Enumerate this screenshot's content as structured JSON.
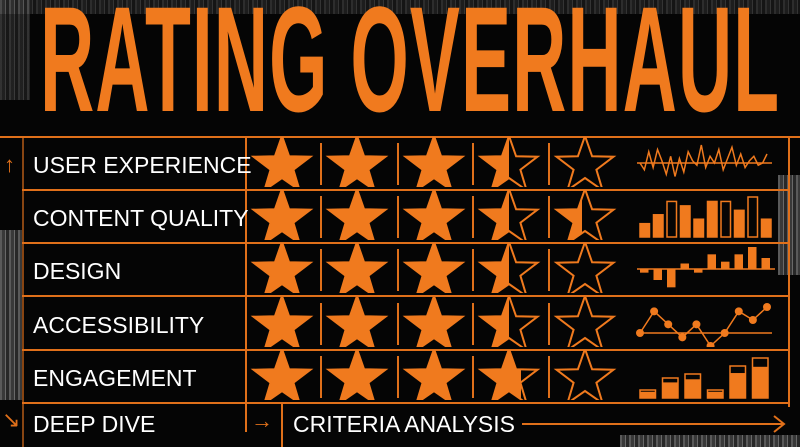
{
  "title": "RATING OVERHAUL",
  "colors": {
    "accent": "#f07a1e",
    "background": "#050505",
    "text": "#ffffff"
  },
  "rows": [
    {
      "label": "USER EXPERIENCE",
      "stars": [
        1,
        1,
        1,
        0.5,
        0
      ],
      "spark": {
        "type": "line",
        "values": [
          0,
          -3,
          5,
          -2,
          6,
          1,
          -5,
          3,
          -6,
          2,
          -4,
          5,
          1,
          -1,
          8,
          -2,
          3,
          0,
          6,
          -3,
          2,
          7,
          -1,
          4,
          -2,
          1,
          3,
          -1,
          0,
          4
        ]
      }
    },
    {
      "label": "CONTENT QUALITY",
      "stars": [
        1,
        1,
        1,
        0.5,
        0.45
      ],
      "spark": {
        "type": "bar",
        "values": [
          3,
          5,
          8,
          7,
          4,
          8,
          8,
          6,
          9,
          4
        ],
        "outlined": [
          false,
          false,
          true,
          false,
          false,
          false,
          true,
          false,
          true,
          false
        ]
      }
    },
    {
      "label": "DESIGN",
      "stars": [
        1,
        1,
        1,
        0.5,
        0.05
      ],
      "spark": {
        "type": "bar-signed",
        "values": [
          -1,
          -3,
          -5,
          1.5,
          -1,
          4,
          2,
          4,
          6,
          3
        ]
      }
    },
    {
      "label": "ACCESSIBILITY",
      "stars": [
        1,
        1,
        1,
        0.5,
        0
      ],
      "spark": {
        "type": "line-dots",
        "values": [
          0,
          5,
          2,
          -1,
          2,
          -3,
          0,
          5,
          3,
          6
        ]
      }
    },
    {
      "label": "ENGAGEMENT",
      "stars": [
        1,
        1,
        1,
        0.7,
        0
      ],
      "spark": {
        "type": "stacked-bar",
        "values": [
          2,
          5,
          6,
          2,
          8,
          10
        ]
      }
    }
  ],
  "footer": {
    "left": "DEEP DIVE",
    "right": "CRITERIA ANALYSIS"
  },
  "icons": {
    "top": "arrow-up-icon",
    "bottom": "arrow-down-right-icon",
    "mid": "arrow-right-icon",
    "end": "long-arrow-right-icon"
  }
}
